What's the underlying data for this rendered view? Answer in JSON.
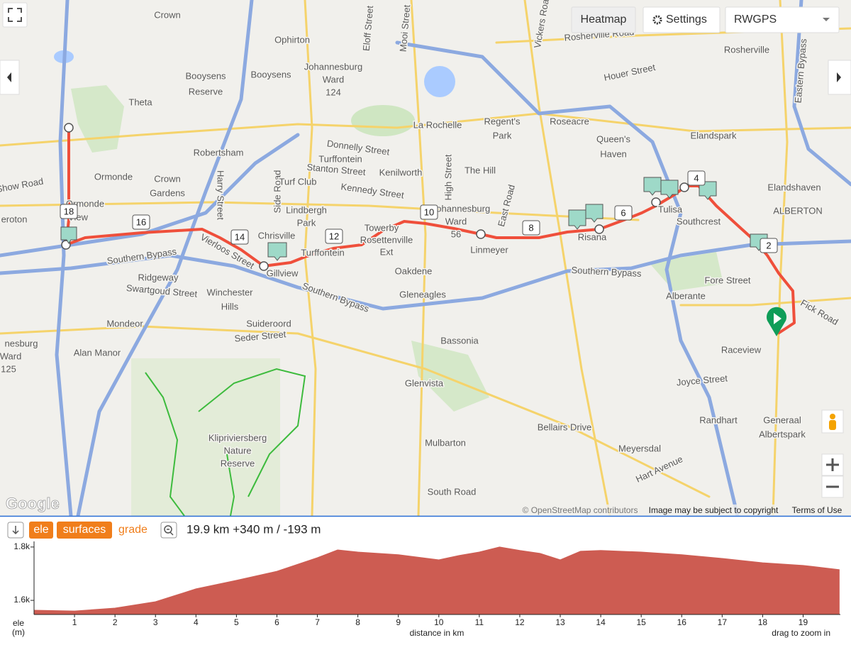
{
  "toolbar": {
    "heatmap": "Heatmap",
    "settings": "Settings",
    "map_source": "RWGPS"
  },
  "map": {
    "labels": [
      "Crown",
      "Ophirton",
      "Booysens",
      "Booysens",
      "Reserve",
      "Johannesburg",
      "Ward",
      "124",
      "Theta",
      "Robertsham",
      "Ormonde",
      "Crown",
      "Gardens",
      "Harry Street",
      "Side Road",
      "Lindbergh",
      "Park",
      "Chrisville",
      "Turffontein",
      "Gillview",
      "Donnelly Street",
      "Turffontein",
      "Stanton Street",
      "Kenilworth",
      "Turf Club",
      "Kennedy Street",
      "Towerby",
      "Rosettenville",
      "Ext",
      "La Rochelle",
      "Regent's",
      "Park",
      "The Hill",
      "High Street",
      "Johannesburg",
      "Ward",
      "56",
      "Linmeyer",
      "Oakdene",
      "Gleneagles",
      "Bassonia",
      "Glenvista",
      "Mulbarton",
      "Bellairs Drive",
      "South Road",
      "Roseacre",
      "Queen's",
      "Haven",
      "Rosherville Road",
      "Rosherville",
      "Houer Street",
      "Elandspark",
      "Elandshaven",
      "ALBERTON",
      "Tulisa",
      "Southcrest",
      "Risana",
      "Fore Street",
      "Alberante",
      "Fick Road",
      "Raceview",
      "Joyce Street",
      "Randhart",
      "Generaal",
      "Albertspark",
      "Meyersdal",
      "Hart Avenue",
      "Southern Bypass",
      "Southern Bypass",
      "Southern Bypass",
      "Ridgeway",
      "Swartgoud Street",
      "Winchester",
      "Hills",
      "Mondeor",
      "Suideroord",
      "Seder Street",
      "Alan Manor",
      "Klipriviersberg",
      "Nature",
      "Reserve",
      "Vierloos Street",
      "Eloff Street",
      "Mooi Street",
      "Vickers Road",
      "Eastern Bypass",
      "East Road",
      "eroton",
      "Show Road",
      "nesburg",
      "Ward",
      "125",
      "Ormonde",
      "View"
    ],
    "km_markers": [
      "2",
      "4",
      "6",
      "8",
      "10",
      "12",
      "14",
      "16",
      "18"
    ],
    "logo": "Google",
    "attribution": "© OpenStreetMap contributors",
    "copyright": "Image may be subject to copyright",
    "terms": "Terms of Use"
  },
  "profile_bar": {
    "ele": "ele",
    "surfaces": "surfaces",
    "grade": "grade",
    "summary": "19.9 km +340 m / -193 m"
  },
  "chart_data": {
    "type": "area",
    "color": "#cd5c52",
    "x": [
      0,
      1,
      2,
      3,
      4,
      5,
      6,
      7,
      7.5,
      8,
      9,
      10,
      10.5,
      11,
      11.5,
      12,
      12.5,
      13,
      13.5,
      14,
      15,
      16,
      17,
      18,
      19,
      19.9
    ],
    "values": [
      1563,
      1560,
      1571,
      1595,
      1643,
      1675,
      1709,
      1760,
      1789,
      1781,
      1771,
      1752,
      1768,
      1781,
      1800,
      1787,
      1776,
      1752,
      1784,
      1787,
      1781,
      1771,
      1757,
      1741,
      1731,
      1715
    ],
    "xlim": [
      0,
      19.92
    ],
    "ylim": [
      1547,
      1821
    ],
    "xticks": [
      1,
      2,
      3,
      4,
      5,
      6,
      7,
      8,
      9,
      10,
      11,
      12,
      13,
      14,
      15,
      16,
      17,
      18,
      19
    ],
    "yticks": [
      {
        "value": 1600,
        "label": "1.6k"
      },
      {
        "value": 1800,
        "label": "1.8k"
      }
    ],
    "ylabel": "ele",
    "ylabel_unit": "(m)",
    "xlabel": "distance in km",
    "hint": "drag to zoom in"
  }
}
